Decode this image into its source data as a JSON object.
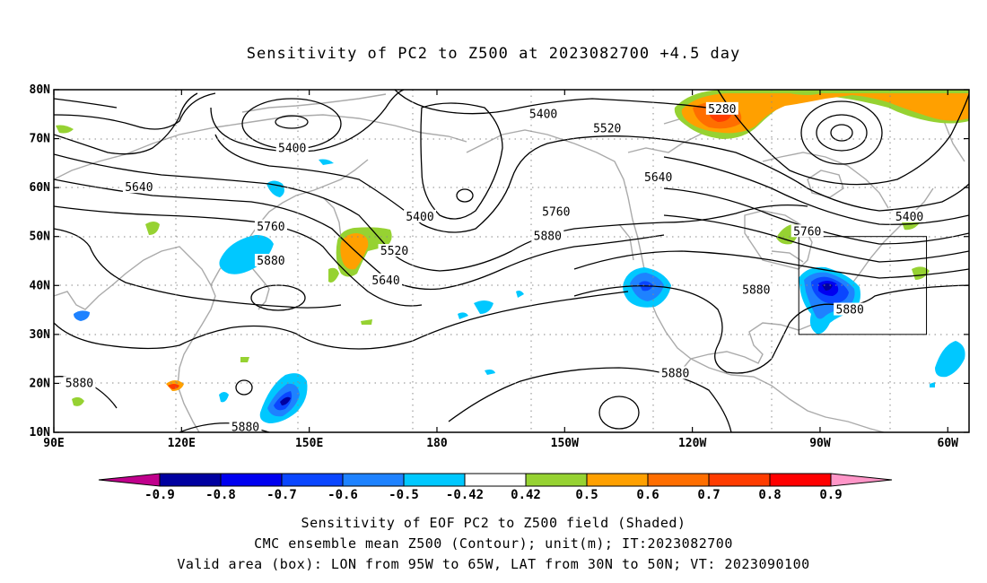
{
  "title": "Sensitivity of PC2 to Z500 at 2023082700 +4.5 day",
  "lat_labels": [
    "80N",
    "70N",
    "60N",
    "50N",
    "40N",
    "30N",
    "20N",
    "10N"
  ],
  "lon_labels": [
    "90E",
    "120E",
    "150E",
    "180",
    "150W",
    "120W",
    "90W",
    "60W"
  ],
  "contours": [
    {
      "label": "5400",
      "lon": 205,
      "lat": 75
    },
    {
      "label": "5520",
      "lon": 220,
      "lat": 72
    },
    {
      "label": "5280",
      "lon": 247,
      "lat": 76
    },
    {
      "label": "5400",
      "lon": 146,
      "lat": 68
    },
    {
      "label": "5640",
      "lon": 232,
      "lat": 62
    },
    {
      "label": "5640",
      "lon": 110,
      "lat": 60
    },
    {
      "label": "5400",
      "lon": 176,
      "lat": 54
    },
    {
      "label": "5400",
      "lon": 291,
      "lat": 54
    },
    {
      "label": "5760",
      "lon": 208,
      "lat": 55
    },
    {
      "label": "5880",
      "lon": 206,
      "lat": 50
    },
    {
      "label": "5760",
      "lon": 141,
      "lat": 52
    },
    {
      "label": "5880",
      "lon": 141,
      "lat": 45
    },
    {
      "label": "5760",
      "lon": 267,
      "lat": 51
    },
    {
      "label": "5520",
      "lon": 170,
      "lat": 47
    },
    {
      "label": "5640",
      "lon": 168,
      "lat": 41
    },
    {
      "label": "5880",
      "lon": 255,
      "lat": 39
    },
    {
      "label": "5880",
      "lon": 277,
      "lat": 35
    },
    {
      "label": "5880",
      "lon": 236,
      "lat": 22
    },
    {
      "label": "5880",
      "lon": 96,
      "lat": 20
    },
    {
      "label": "5880",
      "lon": 135,
      "lat": 11
    }
  ],
  "box": {
    "lon_min": -95,
    "lon_max": -65,
    "lat_min": 30,
    "lat_max": 50
  },
  "colorbar": {
    "labels": [
      "-0.9",
      "-0.8",
      "-0.7",
      "-0.6",
      "-0.5",
      "-0.42",
      "0.42",
      "0.5",
      "0.6",
      "0.7",
      "0.8",
      "0.9"
    ],
    "colors": [
      "#c0008c",
      "#0000a0",
      "#0000f0",
      "#0a46ff",
      "#1e82ff",
      "#00c8ff",
      "#ffffff",
      "#96d232",
      "#ffa000",
      "#ff6e00",
      "#ff3c00",
      "#ff0000",
      "#ff96c8"
    ]
  },
  "caption1": "Sensitivity of EOF PC2 to Z500 field (Shaded)",
  "caption2": "CMC ensemble mean Z500 (Contour); unit(m); IT:2023082700",
  "caption3": "Valid area (box): LON from 95W to 65W, LAT from 30N to 50N; VT: 2023090100"
}
